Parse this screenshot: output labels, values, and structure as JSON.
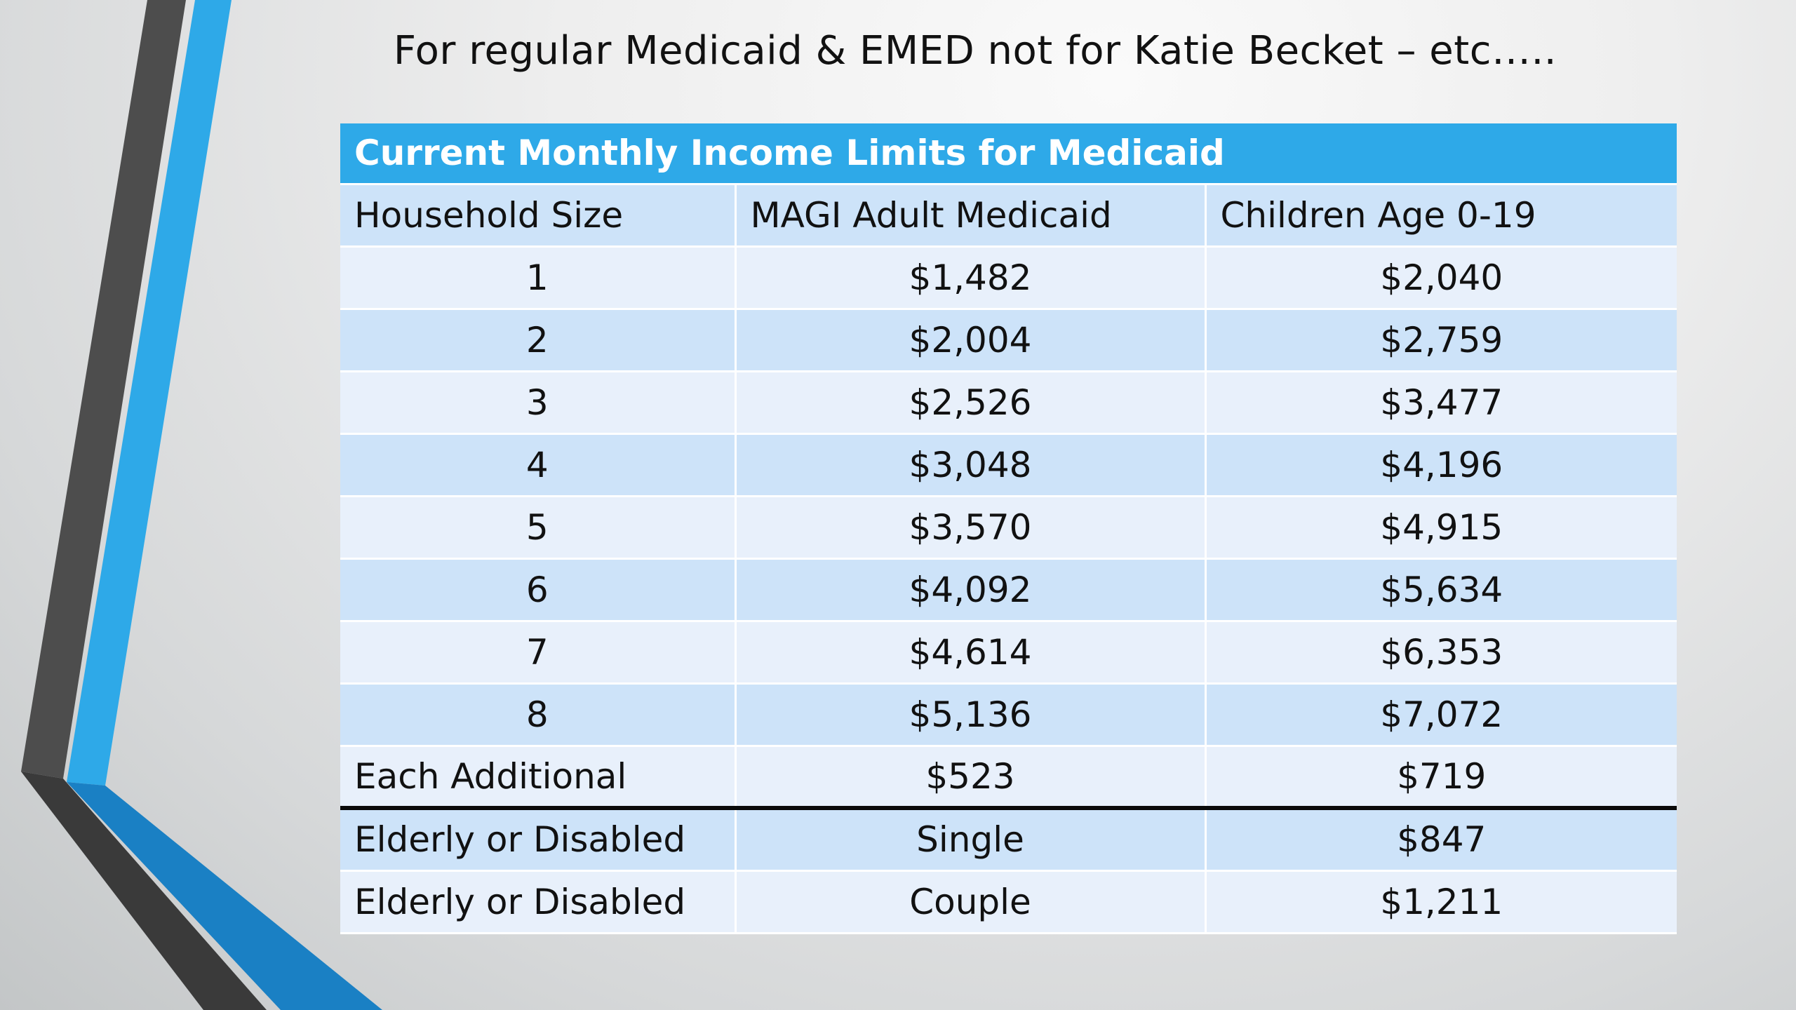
{
  "slide": {
    "title": "For regular Medicaid & EMED not for Katie Becket – etc….."
  },
  "table": {
    "banner": "Current Monthly Income Limits for Medicaid",
    "columns": [
      "Household Size",
      "MAGI Adult Medicaid",
      "Children Age 0-19"
    ],
    "rows": [
      [
        "1",
        "$1,482",
        "$2,040"
      ],
      [
        "2",
        "$2,004",
        "$2,759"
      ],
      [
        "3",
        "$2,526",
        "$3,477"
      ],
      [
        "4",
        "$3,048",
        "$4,196"
      ],
      [
        "5",
        "$3,570",
        "$4,915"
      ],
      [
        "6",
        "$4,092",
        "$5,634"
      ],
      [
        "7",
        "$4,614",
        "$6,353"
      ],
      [
        "8",
        "$5,136",
        "$7,072"
      ],
      [
        "Each Additional",
        "$523",
        "$719"
      ]
    ],
    "elderly_rows": [
      [
        "Elderly or Disabled",
        "Single",
        "$847"
      ],
      [
        "Elderly or Disabled",
        "Couple",
        "$1,211"
      ]
    ]
  },
  "colors": {
    "banner": "#2ea9e8",
    "row_light": "#e8f0fb",
    "row_dark": "#cde3f9",
    "accent_blue": "#29a3e6",
    "accent_dark": "#4a4a4a"
  }
}
